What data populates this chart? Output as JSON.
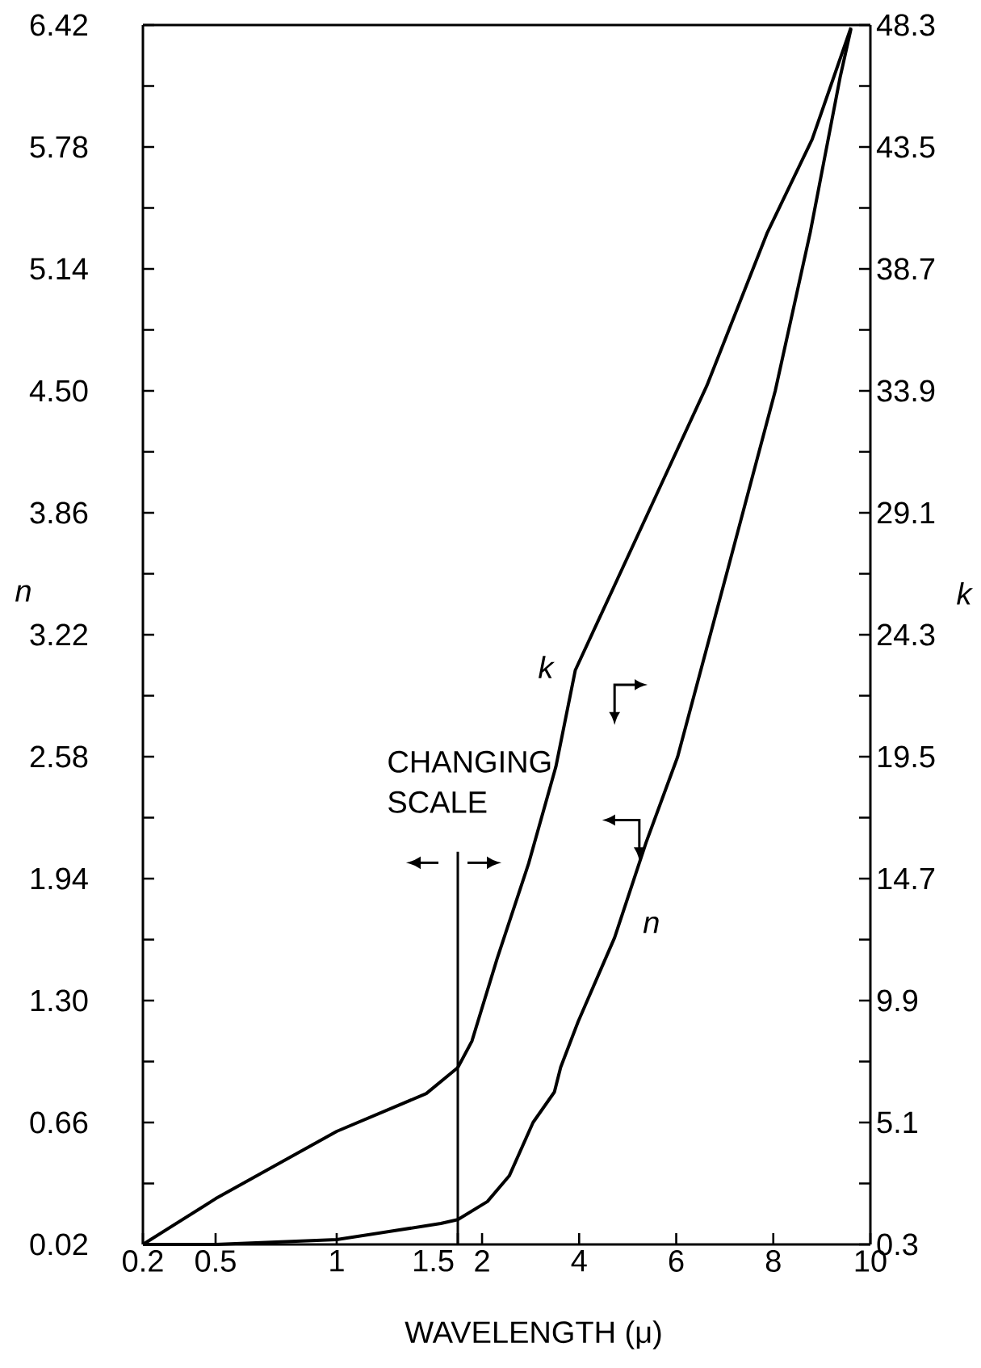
{
  "chart_data": [
    {
      "type": "line",
      "ylabel": "n",
      "xlim": [
        0.2,
        1.5
      ],
      "xticks": [
        0.2,
        0.5,
        1,
        1.5
      ],
      "ylim": [
        0.02,
        6.42
      ],
      "yticks": [
        0.02,
        {
          "value": 0.34,
          "label": null
        },
        0.66,
        {
          "value": 0.98,
          "label": null
        },
        {
          "value": 1.3,
          "label": "1.30"
        },
        {
          "value": 1.62,
          "label": null
        },
        1.94,
        {
          "value": 2.26,
          "label": null
        },
        2.58,
        {
          "value": 2.9,
          "label": null
        },
        3.22,
        {
          "value": 3.54,
          "label": null
        },
        3.86,
        {
          "value": 4.18,
          "label": null
        },
        {
          "value": 4.5,
          "label": "4.50"
        },
        {
          "value": 4.82,
          "label": null
        },
        5.14,
        {
          "value": 5.46,
          "label": null
        },
        5.78,
        {
          "value": 6.1,
          "label": null
        },
        6.42
      ],
      "y2lim": [
        0.3,
        48.3
      ],
      "series": [
        {
          "color": "#000000",
          "x": [
            0.2,
            0.5,
            1.0,
            1.43,
            1.5
          ],
          "values": [
            0.02,
            0.02,
            0.045,
            0.13,
            0.15
          ]
        },
        {
          "color": "#000000",
          "axis": "y2",
          "x": [
            0.2,
            0.5,
            1.0,
            1.37,
            1.5
          ],
          "values": [
            0.3,
            2.1,
            4.75,
            6.24,
            7.26
          ]
        }
      ]
    },
    {
      "type": "line",
      "xlabel": "WAVELENGTH (μ)",
      "y2label": "k",
      "xlim": [
        1.5,
        10
      ],
      "xticks": [
        2,
        4,
        6,
        8,
        10
      ],
      "ylim": [
        0.02,
        6.42
      ],
      "y2lim": [
        0.3,
        48.3
      ],
      "y2ticks": [
        0.3,
        {
          "value": 2.7,
          "label": null
        },
        5.1,
        {
          "value": 7.5,
          "label": null
        },
        9.9,
        {
          "value": 12.3,
          "label": null
        },
        14.7,
        {
          "value": 17.1,
          "label": null
        },
        19.5,
        {
          "value": 21.9,
          "label": null
        },
        24.3,
        {
          "value": 26.7,
          "label": null
        },
        29.1,
        {
          "value": 31.5,
          "label": null
        },
        33.9,
        {
          "value": 36.3,
          "label": null
        },
        38.7,
        {
          "value": 41.1,
          "label": null
        },
        43.5,
        {
          "value": 45.9,
          "label": null
        },
        48.3
      ],
      "ref_lines": [
        {
          "axis": "x",
          "value": 1.5,
          "label": "CHANGING SCALE"
        }
      ],
      "series": [
        {
          "name": "n",
          "color": "#000000",
          "x": [
            1.5,
            2.11,
            2.56,
            3.05,
            3.49,
            3.62,
            3.98,
            4.73,
            5.38,
            6.03,
            7.08,
            8.04,
            8.76,
            9.38,
            9.6
          ],
          "values": [
            0.15,
            0.245,
            0.38,
            0.66,
            0.82,
            0.95,
            1.19,
            1.63,
            2.13,
            2.58,
            3.58,
            4.5,
            5.33,
            6.15,
            6.4
          ]
        },
        {
          "name": "k",
          "color": "#000000",
          "axis": "y2",
          "x": [
            1.5,
            1.79,
            2.31,
            2.96,
            3.52,
            3.92,
            5.59,
            6.63,
            7.87,
            8.8,
            9.6
          ],
          "values": [
            7.26,
            8.3,
            11.55,
            15.3,
            19.1,
            22.9,
            29.8,
            34.1,
            40.1,
            43.8,
            48.2
          ]
        }
      ]
    }
  ]
}
